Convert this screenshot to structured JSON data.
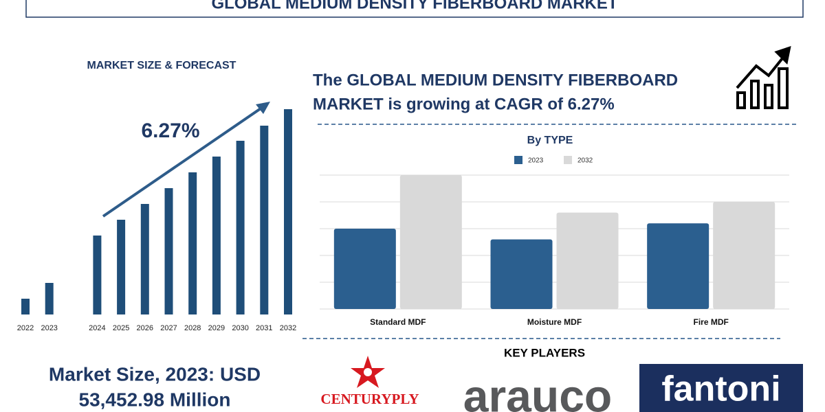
{
  "header": {
    "title": "GLOBAL MEDIUM DENSITY FIBERBOARD MARKET"
  },
  "headline": [
    "The GLOBAL MEDIUM DENSITY FIBERBOARD",
    "MARKET is growing at CAGR of 6.27%"
  ],
  "market_size": [
    "Market Size, 2023: USD",
    "53,452.98 Million"
  ],
  "key_players": {
    "title": "KEY PLAYERS",
    "logos": [
      "CENTURYPLY",
      "arauco",
      "fantoni"
    ]
  },
  "chart_data": [
    {
      "type": "bar",
      "title": "MARKET SIZE & FORECAST",
      "annotation": "6.27%",
      "categories": [
        "2022",
        "2023",
        "2024",
        "2025",
        "2026",
        "2027",
        "2028",
        "2029",
        "2030",
        "2031",
        "2032"
      ],
      "values": [
        23,
        46,
        115,
        138,
        161,
        184,
        207,
        230,
        253,
        275,
        299
      ],
      "color": "#1f4e79",
      "ylim": [
        0,
        310
      ]
    },
    {
      "type": "grouped-bar",
      "title": "By TYPE",
      "categories": [
        "Standard MDF",
        "Moisture MDF",
        "Fire MDF"
      ],
      "series": [
        {
          "name": "2023",
          "color": "#2b5f8f",
          "values": [
            3.0,
            2.6,
            3.2
          ]
        },
        {
          "name": "2032",
          "color": "#d9d9d9",
          "values": [
            5.0,
            3.6,
            4.0
          ]
        }
      ],
      "ylim": [
        0,
        5
      ],
      "yticks": [
        0,
        1,
        2,
        3,
        4,
        5
      ],
      "grid": true
    }
  ]
}
